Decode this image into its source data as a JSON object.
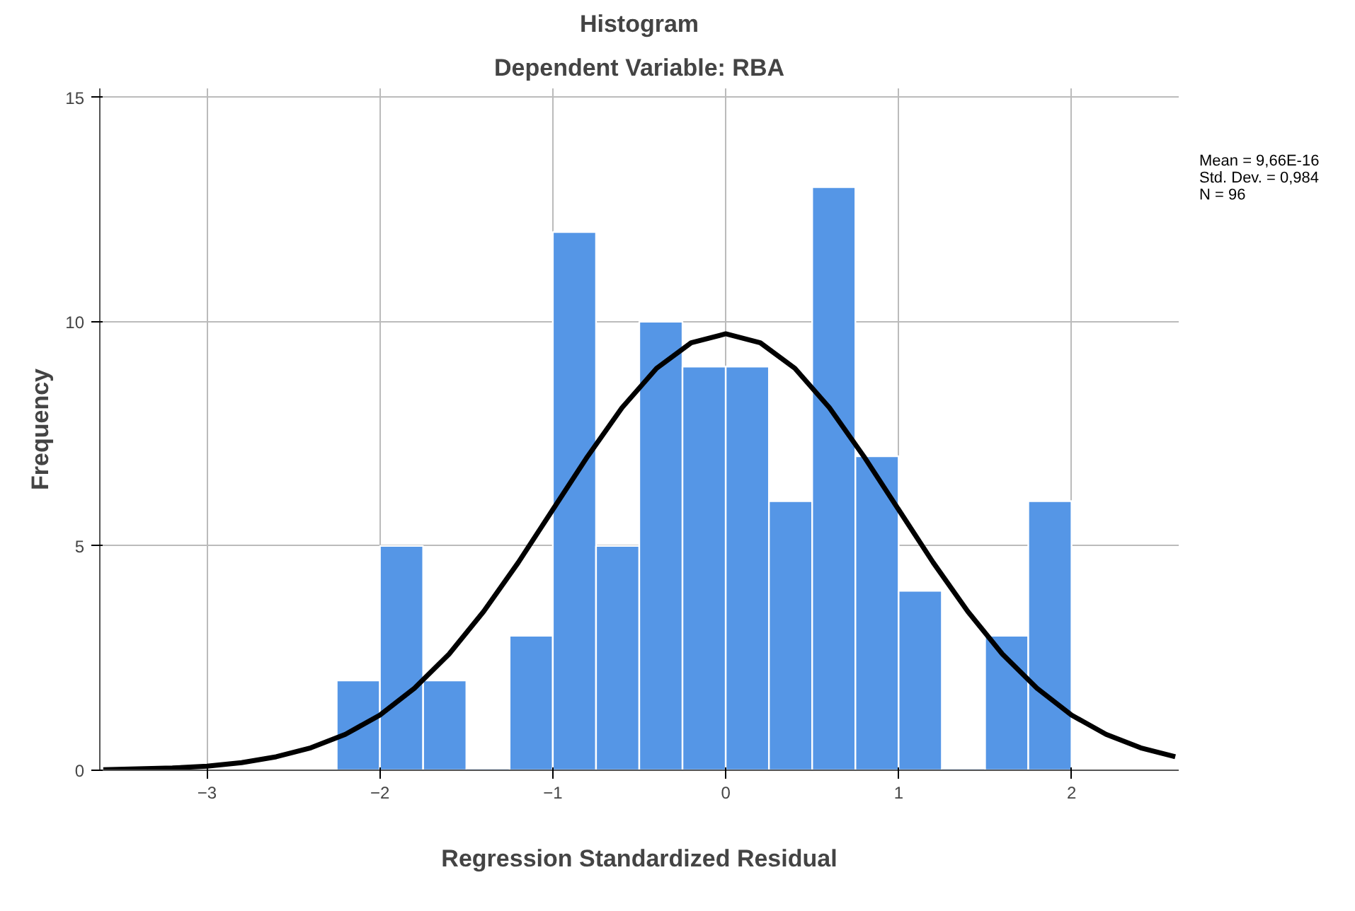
{
  "chart_data": {
    "type": "histogram",
    "title": "Histogram",
    "subtitle": "Dependent Variable: RBA",
    "xlabel": "Regression Standardized Residual",
    "ylabel": "Frequency",
    "bins": [
      -2.25,
      -2.0,
      -1.75,
      -1.5,
      -1.25,
      -1.0,
      -0.75,
      -0.5,
      -0.25,
      0.0,
      0.25,
      0.5,
      0.75,
      1.0,
      1.25,
      1.5,
      1.75,
      2.0
    ],
    "values": [
      2,
      5,
      2,
      0,
      3,
      12,
      5,
      10,
      9,
      9,
      6,
      13,
      7,
      4,
      0,
      3,
      6
    ],
    "color": "#5596e6",
    "series": [
      {
        "type": "line",
        "color": "#000000",
        "x": [
          -3.6,
          -3.4,
          -3.2,
          -3.0,
          -2.8,
          -2.6,
          -2.4,
          -2.2,
          -2.0,
          -1.8,
          -1.6,
          -1.4,
          -1.2,
          -1.0,
          -0.8,
          -0.6,
          -0.4,
          -0.2,
          0.0,
          0.2,
          0.4,
          0.6,
          0.8,
          1.0,
          1.2,
          1.4,
          1.6,
          1.8,
          2.0,
          2.2,
          2.4,
          2.6
        ],
        "values": [
          0.01,
          0.03,
          0.05,
          0.09,
          0.17,
          0.3,
          0.5,
          0.8,
          1.23,
          1.83,
          2.59,
          3.54,
          4.63,
          5.81,
          6.99,
          8.08,
          8.96,
          9.53,
          9.73,
          9.53,
          8.96,
          8.08,
          6.99,
          5.81,
          4.63,
          3.54,
          2.59,
          1.83,
          1.23,
          0.8,
          0.5,
          0.3
        ]
      }
    ],
    "xlim": [
      -3.62,
      2.62
    ],
    "ylim": [
      0,
      15.2
    ],
    "xticks": [
      -3,
      -2,
      -1,
      0,
      1,
      2
    ],
    "yticks": [
      0,
      5,
      10,
      15
    ],
    "grid": true,
    "annotations": [
      "Mean = 9,66E-16",
      "Std. Dev. = 0,984",
      "N = 96"
    ]
  }
}
